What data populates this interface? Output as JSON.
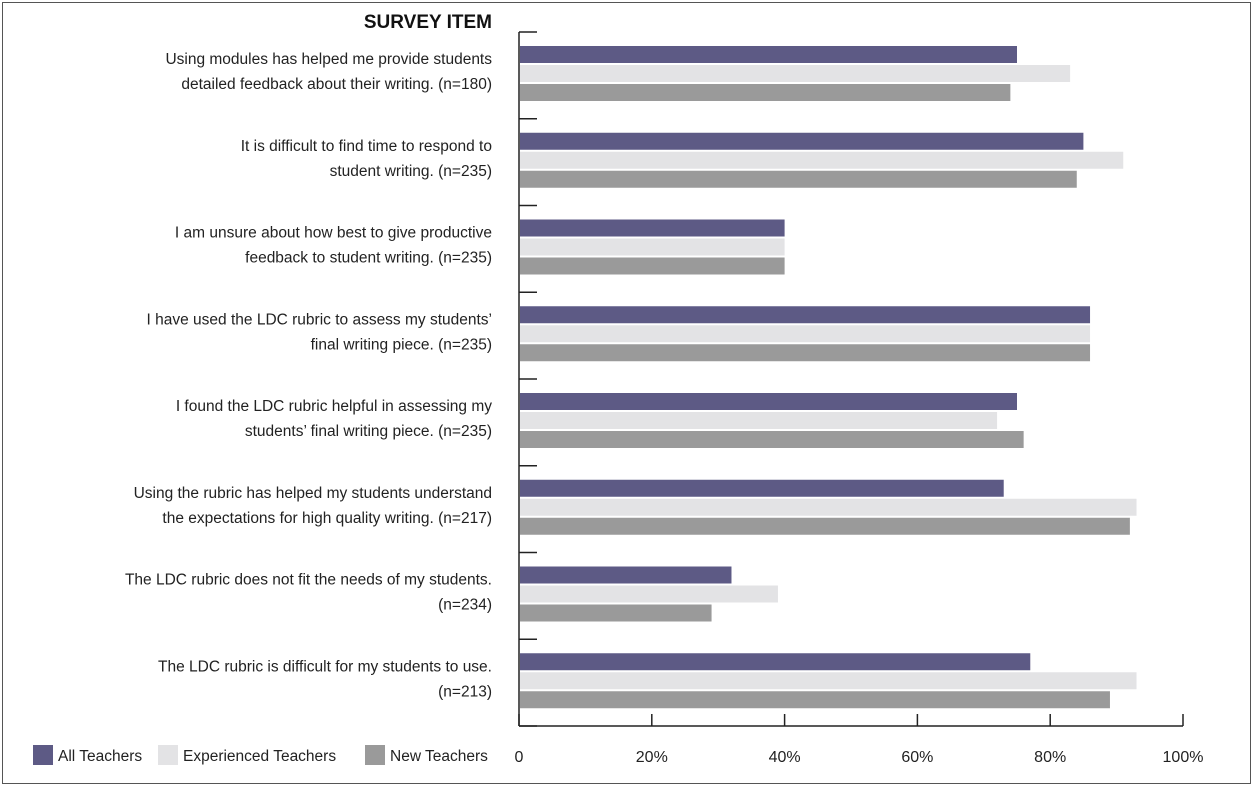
{
  "chart_data": {
    "type": "bar",
    "orientation": "horizontal",
    "title": "SURVEY ITEM",
    "categories": [
      [
        "Using modules has helped me provide students",
        "detailed feedback about their writing.  (n=180)"
      ],
      [
        "It is difficult to find time to respond to",
        "student writing.  (n=235)"
      ],
      [
        "I am unsure about how best to give productive",
        "feedback to student writing.  (n=235)"
      ],
      [
        "I have used the LDC rubric to assess my students’",
        "final writing piece.  (n=235)"
      ],
      [
        "I found the LDC rubric helpful in assessing my",
        "students’ final writing piece.  (n=235)"
      ],
      [
        "Using the rubric has helped my students understand",
        "the expectations for high quality writing.   (n=217)"
      ],
      [
        "The LDC rubric does not fit the needs of my students.",
        "(n=234)"
      ],
      [
        "The LDC rubric is difficult for my students to use.",
        "(n=213)"
      ]
    ],
    "series": [
      {
        "name": "All Teachers",
        "color": "#5d5a85",
        "values": [
          75,
          85,
          40,
          86,
          75,
          73,
          32,
          77
        ]
      },
      {
        "name": "Experienced Teachers",
        "color": "#e3e3e5",
        "values": [
          83,
          91,
          40,
          86,
          72,
          93,
          39,
          93
        ]
      },
      {
        "name": "New Teachers",
        "color": "#9a9a9a",
        "values": [
          74,
          84,
          40,
          86,
          76,
          92,
          29,
          89
        ]
      }
    ],
    "xlim": [
      0,
      100
    ],
    "xticks": [
      {
        "value": 0,
        "label": "0"
      },
      {
        "value": 20,
        "label": "20%"
      },
      {
        "value": 40,
        "label": "40%"
      },
      {
        "value": 60,
        "label": "60%"
      },
      {
        "value": 80,
        "label": "80%"
      },
      {
        "value": 100,
        "label": "100%"
      }
    ],
    "legend": "bottom-left",
    "grid": false
  }
}
